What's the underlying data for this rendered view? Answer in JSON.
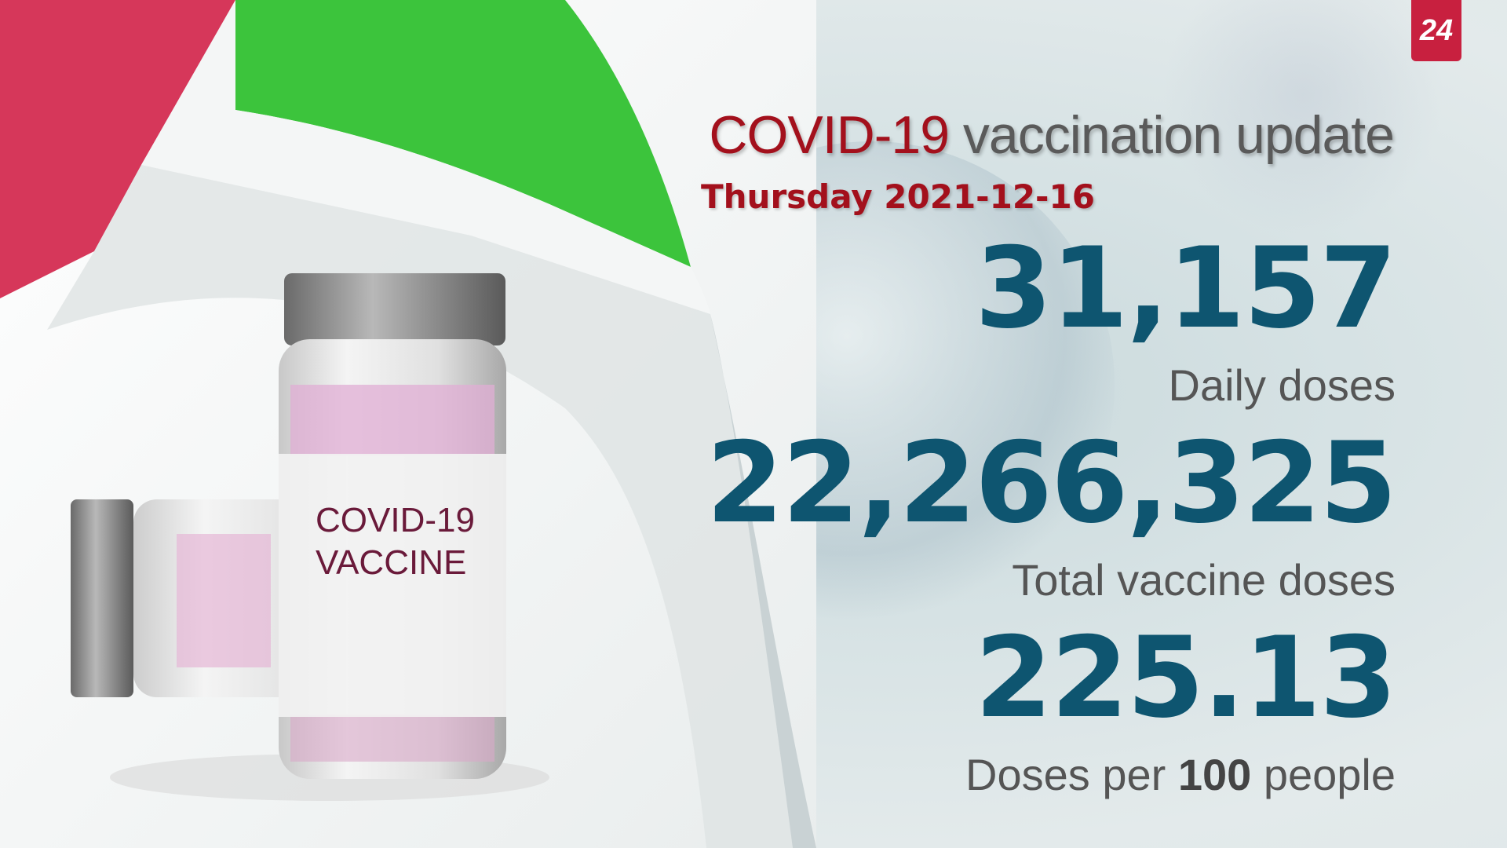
{
  "logo": {
    "text": "24",
    "color": "#c8203f"
  },
  "title": {
    "highlight": "COVID-19",
    "rest": " vaccination update"
  },
  "date": "Thursday 2021-12-16",
  "stats": [
    {
      "value": "31,157",
      "label": "Daily doses"
    },
    {
      "value": "22,266,325",
      "label": "Total vaccine doses"
    },
    {
      "value": "225.13",
      "label_pre": "Doses per ",
      "label_bold": "100",
      "label_post": " people"
    }
  ],
  "vial": {
    "line1": "COVID-19",
    "line2": "VACCINE"
  },
  "colors": {
    "accent_red": "#a3101c",
    "number_blue": "#0e5570",
    "flag_green": "#3cc43c",
    "flag_red": "#d6375a"
  }
}
